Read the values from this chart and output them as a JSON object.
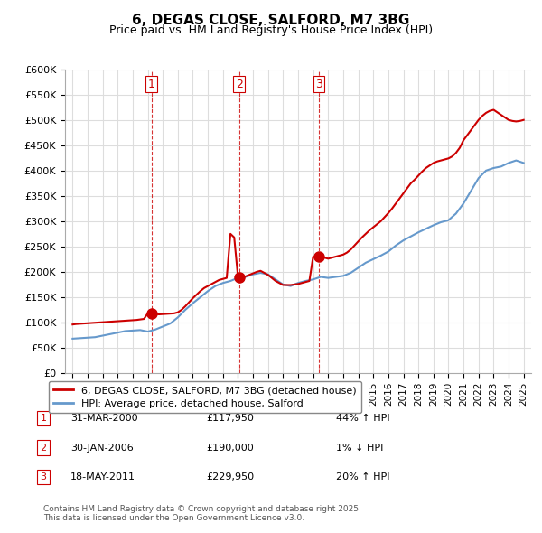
{
  "title": "6, DEGAS CLOSE, SALFORD, M7 3BG",
  "subtitle": "Price paid vs. HM Land Registry's House Price Index (HPI)",
  "ylabel": "",
  "background_color": "#ffffff",
  "grid_color": "#dddddd",
  "legend_label_red": "6, DEGAS CLOSE, SALFORD, M7 3BG (detached house)",
  "legend_label_blue": "HPI: Average price, detached house, Salford",
  "footer": "Contains HM Land Registry data © Crown copyright and database right 2025.\nThis data is licensed under the Open Government Licence v3.0.",
  "transactions": [
    {
      "num": 1,
      "date": "31-MAR-2000",
      "price": "£117,950",
      "rel": "44% ↑ HPI",
      "x": 2000.25
    },
    {
      "num": 2,
      "date": "30-JAN-2006",
      "price": "£190,000",
      "rel": "1% ↓ HPI",
      "x": 2006.08
    },
    {
      "num": 3,
      "date": "18-MAY-2011",
      "price": "£229,950",
      "rel": "20% ↑ HPI",
      "x": 2011.38
    }
  ],
  "hpi_x": [
    1995,
    1995.5,
    1996,
    1996.5,
    1997,
    1997.5,
    1998,
    1998.5,
    1999,
    1999.5,
    2000,
    2000.5,
    2001,
    2001.5,
    2002,
    2002.5,
    2003,
    2003.5,
    2004,
    2004.5,
    2005,
    2005.5,
    2006,
    2006.5,
    2007,
    2007.5,
    2008,
    2008.5,
    2009,
    2009.5,
    2010,
    2010.5,
    2011,
    2011.5,
    2012,
    2012.5,
    2013,
    2013.5,
    2014,
    2014.5,
    2015,
    2015.5,
    2016,
    2016.5,
    2017,
    2017.5,
    2018,
    2018.5,
    2019,
    2019.5,
    2020,
    2020.5,
    2021,
    2021.5,
    2022,
    2022.5,
    2023,
    2023.5,
    2024,
    2024.5,
    2025
  ],
  "hpi_y": [
    68000,
    69000,
    70000,
    71000,
    74000,
    77000,
    80000,
    83000,
    84000,
    85000,
    82000,
    86000,
    92000,
    98000,
    110000,
    125000,
    138000,
    150000,
    162000,
    172000,
    178000,
    182000,
    188000,
    190000,
    195000,
    198000,
    195000,
    185000,
    175000,
    172000,
    178000,
    182000,
    185000,
    190000,
    188000,
    190000,
    192000,
    198000,
    208000,
    218000,
    225000,
    232000,
    240000,
    252000,
    262000,
    270000,
    278000,
    285000,
    292000,
    298000,
    302000,
    315000,
    335000,
    360000,
    385000,
    400000,
    405000,
    408000,
    415000,
    420000,
    415000
  ],
  "price_x": [
    1995,
    1995.25,
    1995.5,
    1995.75,
    1996,
    1996.25,
    1996.5,
    1996.75,
    1997,
    1997.25,
    1997.5,
    1997.75,
    1998,
    1998.25,
    1998.5,
    1998.75,
    1999,
    1999.25,
    1999.5,
    1999.75,
    2000,
    2000.25,
    2000.5,
    2000.75,
    2001,
    2001.25,
    2001.5,
    2001.75,
    2002,
    2002.25,
    2002.5,
    2002.75,
    2003,
    2003.25,
    2003.5,
    2003.75,
    2004,
    2004.25,
    2004.5,
    2004.75,
    2005,
    2005.25,
    2005.5,
    2005.75,
    2006,
    2006.25,
    2006.5,
    2006.75,
    2007,
    2007.25,
    2007.5,
    2007.75,
    2008,
    2008.25,
    2008.5,
    2008.75,
    2009,
    2009.25,
    2009.5,
    2009.75,
    2010,
    2010.25,
    2010.5,
    2010.75,
    2011,
    2011.25,
    2011.5,
    2011.75,
    2012,
    2012.25,
    2012.5,
    2012.75,
    2013,
    2013.25,
    2013.5,
    2013.75,
    2014,
    2014.25,
    2014.5,
    2014.75,
    2015,
    2015.25,
    2015.5,
    2015.75,
    2016,
    2016.25,
    2016.5,
    2016.75,
    2017,
    2017.25,
    2017.5,
    2017.75,
    2018,
    2018.25,
    2018.5,
    2018.75,
    2019,
    2019.25,
    2019.5,
    2019.75,
    2020,
    2020.25,
    2020.5,
    2020.75,
    2021,
    2021.25,
    2021.5,
    2021.75,
    2022,
    2022.25,
    2022.5,
    2022.75,
    2023,
    2023.25,
    2023.5,
    2023.75,
    2024,
    2024.25,
    2024.5,
    2024.75,
    2025
  ],
  "price_y": [
    96000,
    97000,
    97500,
    98000,
    98500,
    99000,
    99500,
    100000,
    100500,
    101000,
    101500,
    102000,
    102500,
    103000,
    103500,
    104000,
    104500,
    105000,
    106000,
    107000,
    117950,
    118000,
    117000,
    116000,
    116500,
    117000,
    117500,
    118000,
    120000,
    125000,
    132000,
    140000,
    148000,
    155000,
    162000,
    168000,
    172000,
    176000,
    180000,
    184000,
    186000,
    188000,
    275000,
    268000,
    190000,
    188000,
    191000,
    194000,
    197000,
    200000,
    202000,
    198000,
    194000,
    188000,
    182000,
    178000,
    174000,
    174000,
    174000,
    175000,
    176000,
    178000,
    180000,
    182000,
    229950,
    228000,
    226000,
    228000,
    226000,
    228000,
    230000,
    232000,
    234000,
    238000,
    244000,
    252000,
    260000,
    268000,
    275000,
    282000,
    288000,
    294000,
    300000,
    308000,
    316000,
    325000,
    335000,
    345000,
    355000,
    365000,
    375000,
    382000,
    390000,
    398000,
    405000,
    410000,
    415000,
    418000,
    420000,
    422000,
    424000,
    428000,
    435000,
    445000,
    460000,
    470000,
    480000,
    490000,
    500000,
    508000,
    514000,
    518000,
    520000,
    515000,
    510000,
    505000,
    500000,
    498000,
    497000,
    498000,
    500000
  ],
  "ylim": [
    0,
    600000
  ],
  "xlim": [
    1994.5,
    2025.5
  ],
  "yticks": [
    0,
    50000,
    100000,
    150000,
    200000,
    250000,
    300000,
    350000,
    400000,
    450000,
    500000,
    550000,
    600000
  ],
  "xtick_years": [
    1995,
    1996,
    1997,
    1998,
    1999,
    2000,
    2001,
    2002,
    2003,
    2004,
    2005,
    2006,
    2007,
    2008,
    2009,
    2010,
    2011,
    2012,
    2013,
    2014,
    2015,
    2016,
    2017,
    2018,
    2019,
    2020,
    2021,
    2022,
    2023,
    2024,
    2025
  ],
  "red_color": "#cc0000",
  "blue_color": "#6699cc",
  "marker_red_color": "#cc0000",
  "vline_color": "#cc0000",
  "marker_size": 8
}
